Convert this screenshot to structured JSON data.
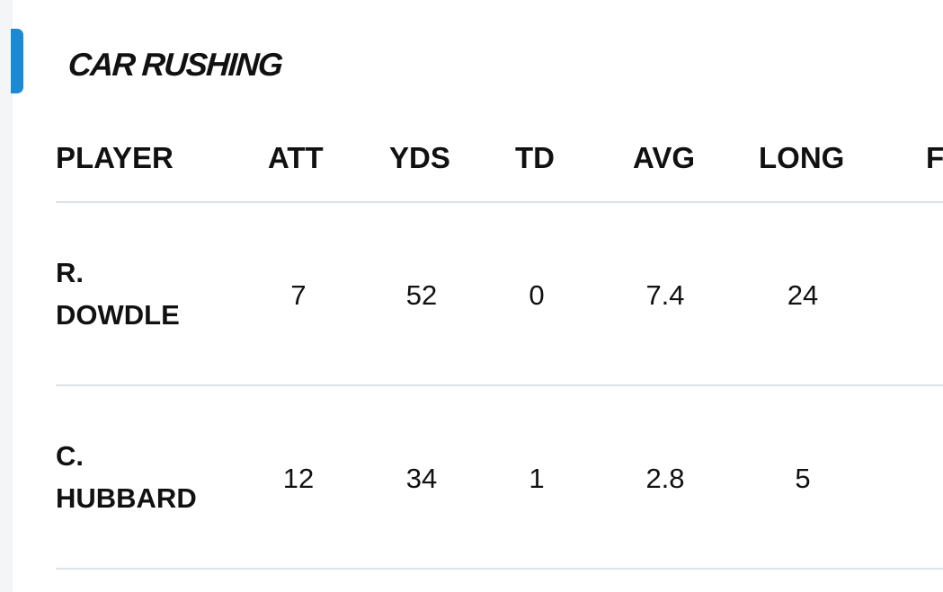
{
  "section": {
    "title": "CAR RUSHING"
  },
  "columns": [
    "PLAYER",
    "ATT",
    "YDS",
    "TD",
    "AVG",
    "LONG",
    "F"
  ],
  "rows": [
    {
      "player_line1": "R.",
      "player_line2": "DOWDLE",
      "att": "7",
      "yds": "52",
      "td": "0",
      "avg": "7.4",
      "long": "24"
    },
    {
      "player_line1": "C.",
      "player_line2": "HUBBARD",
      "att": "12",
      "yds": "34",
      "td": "1",
      "avg": "2.8",
      "long": "5"
    }
  ],
  "colors": {
    "accent": "#1a8ad6",
    "divider": "#dde2e7",
    "text": "#111111"
  }
}
